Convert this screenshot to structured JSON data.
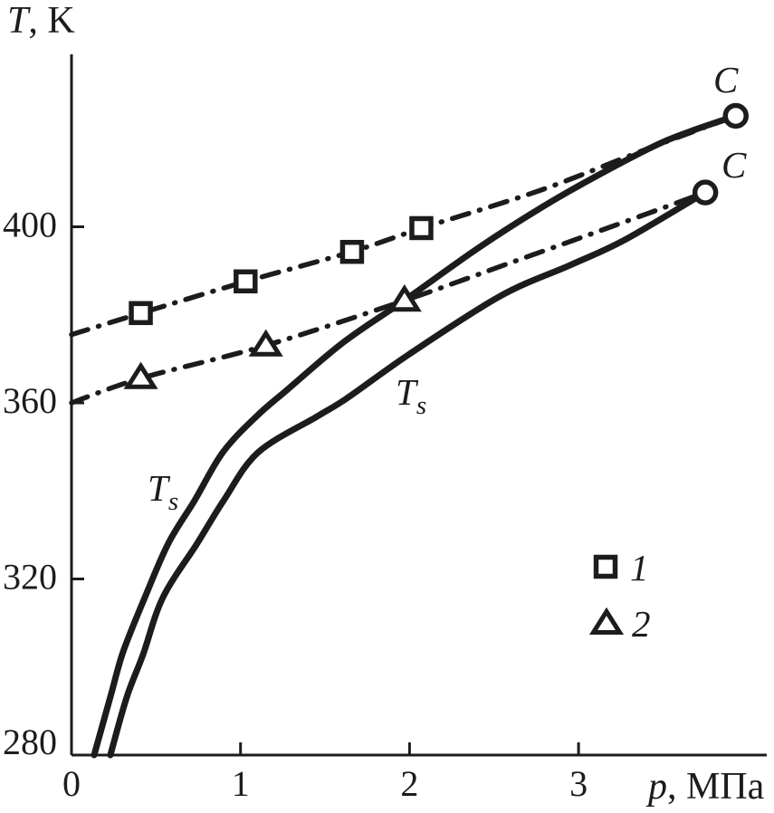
{
  "figure": {
    "background": "#ffffff",
    "ink_color": "#1c1c1c"
  },
  "labels": {
    "y_title_symbol": "T",
    "y_title_unit": ", K",
    "x_title_symbol": "p",
    "x_title_unit": ", МПа",
    "ts_symbol": "T",
    "ts_sub": "s",
    "critical_label": "C"
  },
  "chart_data": {
    "type": "line",
    "title": "",
    "xlabel": "p, МПа",
    "ylabel": "T, K",
    "grid": false,
    "x_axis": {
      "min": 0,
      "max": 4.11,
      "ticks": [
        0,
        1,
        2,
        3
      ]
    },
    "y_axis": {
      "min": 280,
      "max": 439,
      "ticks": [
        280,
        320,
        360,
        400
      ]
    },
    "legend_position": "inside-lower-right",
    "legend": [
      {
        "marker": "square",
        "label": "1"
      },
      {
        "marker": "triangle",
        "label": "2"
      }
    ],
    "series": [
      {
        "name": "saturation-curve-1",
        "label": "Ts",
        "line": "solid",
        "marker": "none",
        "points_p_T": [
          [
            0.134,
            280
          ],
          [
            0.23,
            293.2
          ],
          [
            0.305,
            303.4
          ],
          [
            0.434,
            315.8
          ],
          [
            0.573,
            328.1
          ],
          [
            0.728,
            337.8
          ],
          [
            0.894,
            348.7
          ],
          [
            1.093,
            356.9
          ],
          [
            1.28,
            363.1
          ],
          [
            1.61,
            373.8
          ],
          [
            1.966,
            383.2
          ],
          [
            2.415,
            395.4
          ],
          [
            2.79,
            404.6
          ],
          [
            3.13,
            412.0
          ],
          [
            3.52,
            419.6
          ],
          [
            3.93,
            425.2
          ]
        ]
      },
      {
        "name": "saturation-curve-2",
        "label": "Ts",
        "line": "solid",
        "marker": "none",
        "points_p_T": [
          [
            0.23,
            280
          ],
          [
            0.327,
            293.2
          ],
          [
            0.423,
            302.8
          ],
          [
            0.541,
            315.8
          ],
          [
            0.744,
            328.1
          ],
          [
            0.9,
            337.8
          ],
          [
            1.103,
            348.7
          ],
          [
            1.452,
            356.9
          ],
          [
            1.628,
            361.0
          ],
          [
            2.0,
            371.1
          ],
          [
            2.539,
            384.3
          ],
          [
            2.951,
            391.3
          ],
          [
            3.272,
            397.0
          ],
          [
            3.75,
            407.8
          ]
        ]
      },
      {
        "name": "line-1",
        "label": "1",
        "line": "dash-dot",
        "marker": "square",
        "points_p_T": [
          [
            0,
            375.5
          ],
          [
            0.412,
            380.4
          ],
          [
            1.034,
            387.6
          ],
          [
            1.655,
            394.3
          ],
          [
            2.073,
            399.7
          ],
          [
            2.775,
            408.3
          ],
          [
            3.4,
            417.6
          ],
          [
            3.93,
            425.2
          ]
        ],
        "marker_points_p_T": [
          [
            0.41,
            380.4
          ],
          [
            1.03,
            387.6
          ],
          [
            1.66,
            394.3
          ],
          [
            2.07,
            399.7
          ]
        ]
      },
      {
        "name": "line-2",
        "label": "2",
        "line": "dash-dot",
        "marker": "triangle",
        "points_p_T": [
          [
            0,
            360.0
          ],
          [
            0.412,
            365.6
          ],
          [
            1.146,
            373.0
          ],
          [
            1.966,
            383.2
          ],
          [
            2.646,
            392.5
          ],
          [
            3.2,
            400.1
          ],
          [
            3.75,
            407.8
          ]
        ],
        "marker_points_p_T": [
          [
            0.41,
            365.6
          ],
          [
            1.15,
            373.0
          ],
          [
            1.97,
            383.2
          ]
        ]
      }
    ],
    "critical_points": [
      {
        "label": "C",
        "p": 3.93,
        "T": 425.2
      },
      {
        "label": "C",
        "p": 3.75,
        "T": 407.8
      }
    ],
    "annotations": [
      {
        "text": "Ts",
        "series": "saturation-curve-1",
        "p": 0.54,
        "T": 338
      },
      {
        "text": "Ts",
        "series": "saturation-curve-2",
        "p": 2.0,
        "T": 361
      }
    ]
  }
}
